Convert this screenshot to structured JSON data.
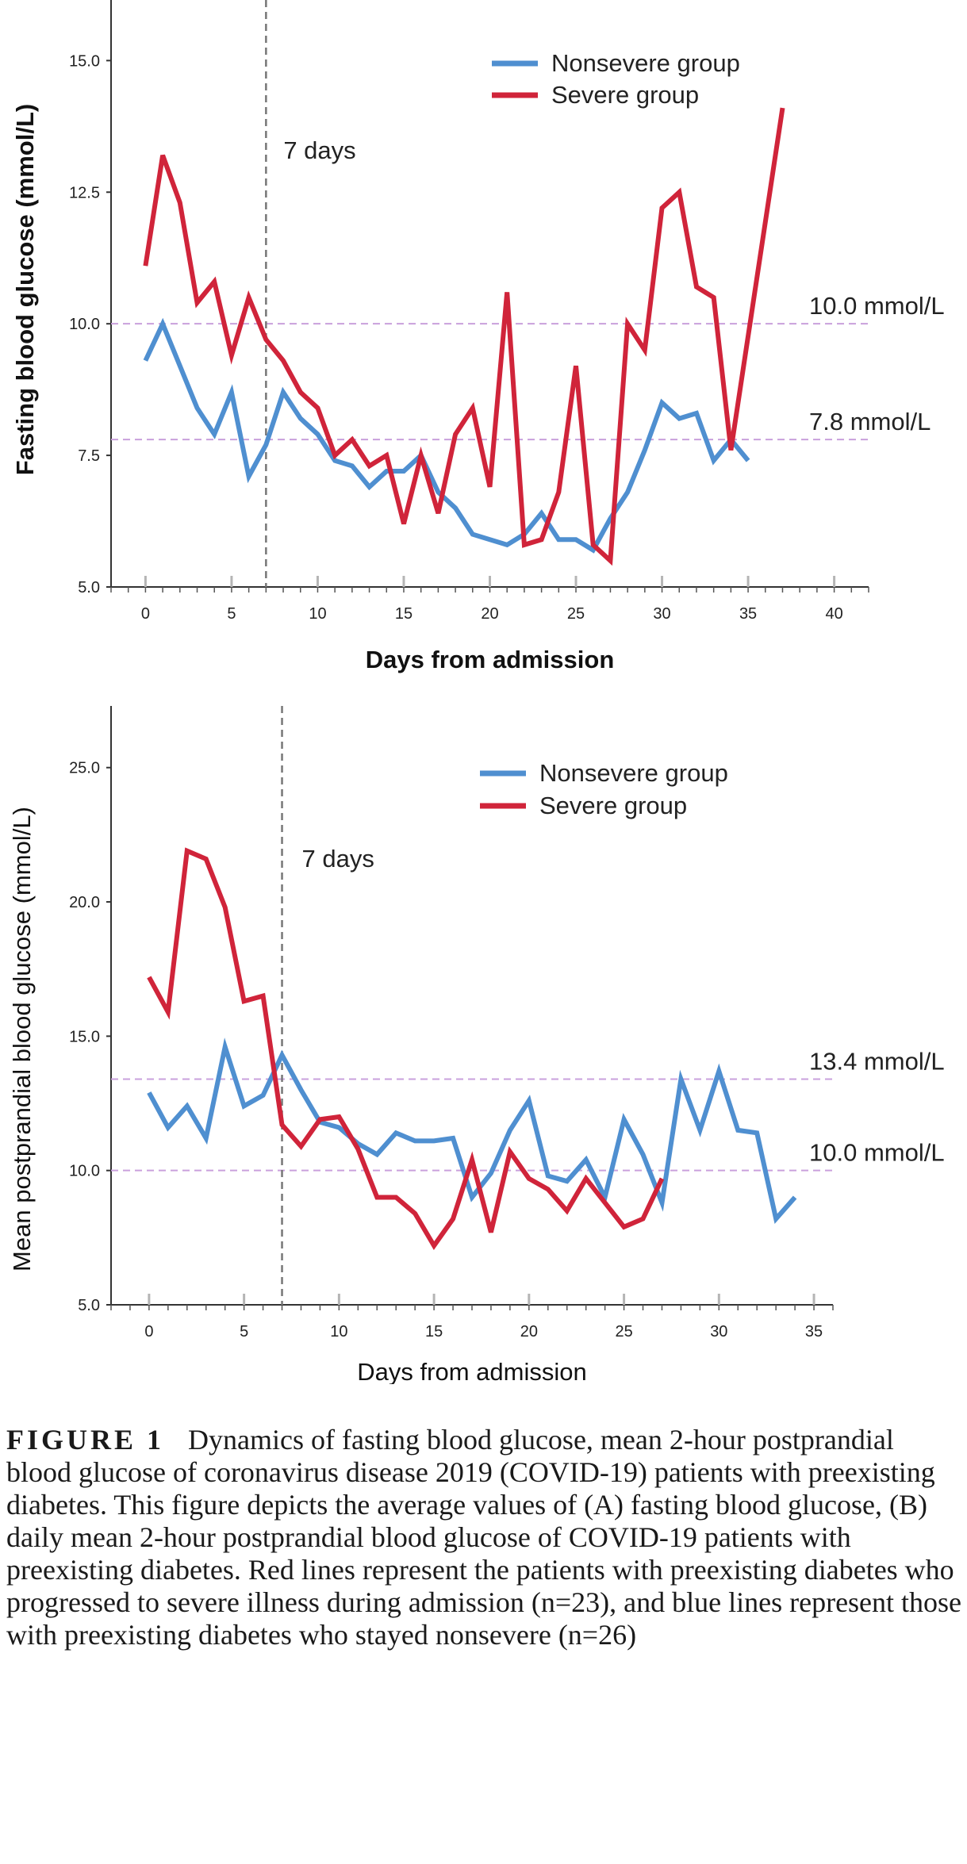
{
  "chart_data": [
    {
      "panel": "A",
      "type": "line",
      "xlabel": "Days from admission",
      "ylabel": "Fasting blood glucose (mmol/L)",
      "xlim": [
        -2,
        42
      ],
      "ylim": [
        5.0,
        16.0
      ],
      "xticks": [
        0,
        5,
        10,
        15,
        20,
        25,
        30,
        35,
        40
      ],
      "xtick_labels": [
        "0",
        "5",
        "10",
        "15",
        "20",
        "25",
        "30",
        "35",
        "40"
      ],
      "yticks": [
        5.0,
        7.5,
        10.0,
        12.5,
        15.0
      ],
      "ytick_labels": [
        "5.0",
        "7.5",
        "10.0",
        "12.5",
        "15.0"
      ],
      "legend_position": "top-right",
      "series": [
        {
          "name": "Nonsevere group",
          "color": "#4f8fd0",
          "x": [
            0,
            1,
            2,
            3,
            4,
            5,
            6,
            7,
            8,
            9,
            10,
            11,
            12,
            13,
            14,
            15,
            16,
            17,
            18,
            19,
            20,
            21,
            22,
            23,
            24,
            25,
            26,
            27,
            28,
            29,
            30,
            31,
            32,
            33,
            34,
            35
          ],
          "y": [
            9.3,
            10.0,
            9.2,
            8.4,
            7.9,
            8.7,
            7.1,
            7.7,
            8.7,
            8.2,
            7.9,
            7.4,
            7.3,
            6.9,
            7.2,
            7.2,
            7.5,
            6.8,
            6.5,
            6.0,
            5.9,
            5.8,
            6.0,
            6.4,
            5.9,
            5.9,
            5.7,
            6.3,
            6.8,
            7.6,
            8.5,
            8.2,
            8.3,
            7.4,
            7.8,
            7.4
          ]
        },
        {
          "name": "Severe group",
          "color": "#d0243a",
          "x": [
            0,
            1,
            2,
            3,
            4,
            5,
            6,
            7,
            8,
            9,
            10,
            11,
            12,
            13,
            14,
            15,
            16,
            17,
            18,
            19,
            20,
            21,
            22,
            23,
            24,
            25,
            26,
            27,
            28,
            29,
            30,
            31,
            32,
            33,
            34,
            37
          ],
          "y": [
            11.1,
            13.2,
            12.3,
            10.4,
            10.8,
            9.4,
            10.5,
            9.7,
            9.3,
            8.7,
            8.4,
            7.5,
            7.8,
            7.3,
            7.5,
            6.2,
            7.5,
            6.4,
            7.9,
            8.4,
            6.9,
            10.6,
            5.8,
            5.9,
            6.8,
            9.2,
            5.8,
            5.5,
            10.0,
            9.5,
            12.2,
            12.5,
            10.7,
            10.5,
            7.6,
            14.1
          ]
        }
      ],
      "vertical_line": {
        "x": 7,
        "label": "7 days"
      },
      "horizontal_lines": [
        {
          "y": 10.0,
          "label": "10.0 mmol/L"
        },
        {
          "y": 7.8,
          "label": "7.8 mmol/L"
        }
      ]
    },
    {
      "panel": "B",
      "type": "line",
      "xlabel": "Days from admission",
      "ylabel": "Mean postprandial blood glucose (mmol/L)",
      "xlim": [
        -2,
        36
      ],
      "ylim": [
        5.0,
        27.0
      ],
      "xticks": [
        0,
        5,
        10,
        15,
        20,
        25,
        30,
        35
      ],
      "xtick_labels": [
        "0",
        "5",
        "10",
        "15",
        "20",
        "25",
        "30",
        "35"
      ],
      "yticks": [
        5.0,
        10.0,
        15.0,
        20.0,
        25.0
      ],
      "ytick_labels": [
        "5.0",
        "10.0",
        "15.0",
        "20.0",
        "25.0"
      ],
      "legend_position": "top-right",
      "series": [
        {
          "name": "Nonsevere group",
          "color": "#4f8fd0",
          "x": [
            0,
            1,
            2,
            3,
            4,
            5,
            6,
            7,
            8,
            9,
            10,
            11,
            12,
            13,
            14,
            15,
            16,
            17,
            18,
            19,
            20,
            21,
            22,
            23,
            24,
            25,
            26,
            27,
            28,
            29,
            30,
            31,
            32,
            33,
            34
          ],
          "y": [
            12.9,
            11.6,
            12.4,
            11.2,
            14.6,
            12.4,
            12.8,
            14.3,
            13.0,
            11.8,
            11.6,
            11.0,
            10.6,
            11.4,
            11.1,
            11.1,
            11.2,
            9.0,
            9.9,
            11.5,
            12.6,
            9.8,
            9.6,
            10.4,
            9.0,
            11.9,
            10.6,
            8.8,
            13.4,
            11.5,
            13.7,
            11.5,
            11.4,
            8.2,
            9.0
          ]
        },
        {
          "name": "Severe group",
          "color": "#d0243a",
          "x": [
            0,
            1,
            2,
            3,
            4,
            5,
            6,
            7,
            8,
            9,
            10,
            11,
            12,
            13,
            14,
            15,
            16,
            17,
            18,
            19,
            20,
            21,
            22,
            23,
            24,
            25,
            26,
            27
          ],
          "y": [
            17.2,
            15.9,
            21.9,
            21.6,
            19.8,
            16.3,
            16.5,
            11.7,
            10.9,
            11.9,
            12.0,
            10.8,
            9.0,
            9.0,
            8.4,
            7.2,
            8.2,
            10.4,
            7.7,
            10.7,
            9.7,
            9.3,
            8.5,
            9.7,
            8.8,
            7.9,
            8.2,
            9.7
          ]
        }
      ],
      "vertical_line": {
        "x": 7,
        "label": "7 days"
      },
      "horizontal_lines": [
        {
          "y": 13.4,
          "label": "13.4 mmol/L"
        },
        {
          "y": 10.0,
          "label": "10.0 mmol/L"
        }
      ]
    }
  ],
  "caption": {
    "label": "FIGURE 1",
    "text": "Dynamics of fasting blood glucose, mean 2-hour postprandial blood glucose of coronavirus disease 2019 (COVID-19) patients with preexisting diabetes. This figure depicts the average values of (A) fasting blood glucose, (B) daily mean 2-hour postprandial blood glucose of COVID-19 patients with preexisting diabetes. Red lines represent the patients with preexisting diabetes who progressed to severe illness during admission (n=23), and blue lines represent those with preexisting diabetes who stayed nonsevere (n=26)"
  }
}
